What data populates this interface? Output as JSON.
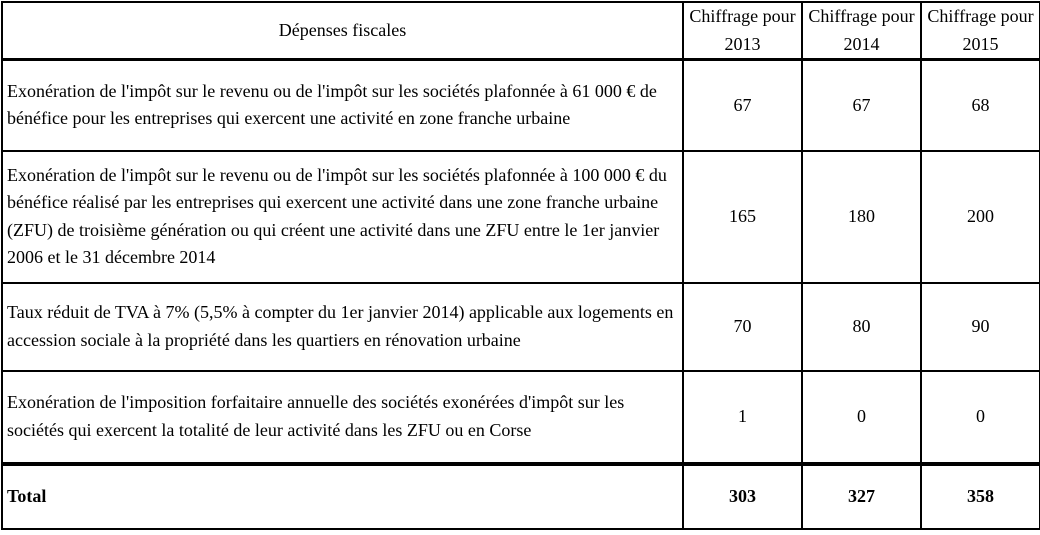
{
  "table": {
    "headers": [
      "Dépenses fiscales",
      "Chiffrage pour 2013",
      "Chiffrage pour 2014",
      "Chiffrage pour 2015"
    ],
    "rows": [
      {
        "label": "Exonération de l'impôt sur le revenu ou de l'impôt sur les sociétés plafonnée à 61 000 € de bénéfice pour les entreprises qui exercent une activité en zone franche urbaine",
        "values": [
          "67",
          "67",
          "68"
        ]
      },
      {
        "label": "Exonération de l'impôt sur le revenu ou de l'impôt sur les sociétés plafonnée à 100 000 € du bénéfice réalisé par les entreprises qui exercent une activité dans une zone franche urbaine (ZFU) de troisième génération ou qui créent une activité dans une ZFU entre le 1er janvier 2006 et le 31 décembre 2014",
        "values": [
          "165",
          "180",
          "200"
        ]
      },
      {
        "label": "Taux réduit de TVA à 7% (5,5% à compter du 1er janvier 2014) applicable aux logements en accession sociale à la propriété dans les quartiers en rénovation urbaine",
        "values": [
          "70",
          "80",
          "90"
        ]
      },
      {
        "label": "Exonération de l'imposition forfaitaire annuelle des sociétés exonérées d'impôt sur les sociétés qui exercent la totalité de leur activité dans les ZFU ou en Corse",
        "values": [
          "1",
          "0",
          "0"
        ]
      }
    ],
    "total": {
      "label": "Total",
      "values": [
        "303",
        "327",
        "358"
      ]
    }
  }
}
